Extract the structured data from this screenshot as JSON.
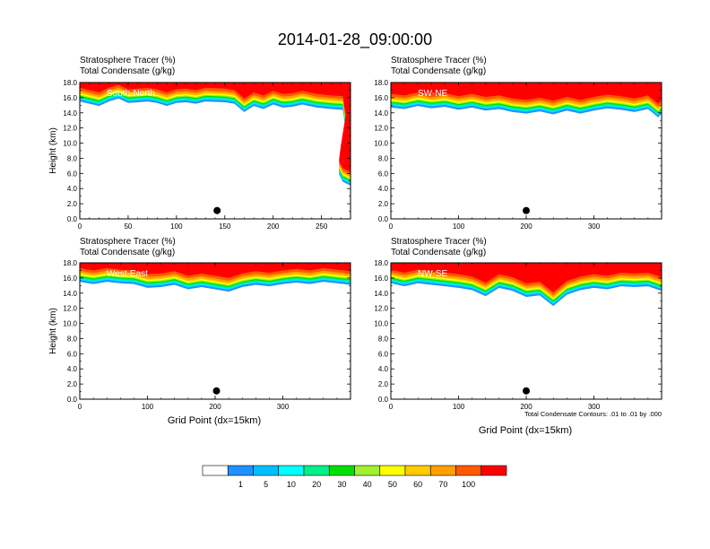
{
  "title": "2014-01-28_09:00:00",
  "footnote": "Total Condensate Contours: .01 to .01 by .000",
  "colors": {
    "white": "#ffffff",
    "blue": "#1e90ff",
    "cyan": "#00e5ff",
    "aquagreen": "#00f08a",
    "green": "#00e000",
    "lime": "#a0f030",
    "yellow": "#ffff00",
    "gold": "#ffcc00",
    "orange": "#ffa000",
    "redorange": "#ff5a00",
    "red": "#ff0000"
  },
  "colorbar": {
    "labels": [
      "1",
      "5",
      "10",
      "20",
      "30",
      "40",
      "50",
      "60",
      "70",
      "100"
    ],
    "colors": [
      "#ffffff",
      "#1e90ff",
      "#00bfff",
      "#00ffff",
      "#00f08a",
      "#00e000",
      "#a0f030",
      "#ffff00",
      "#ffcc00",
      "#ffa000",
      "#ff5a00",
      "#ff0000"
    ]
  },
  "chart_data": [
    {
      "type": "heatmap",
      "label1": "Stratosphere Tracer   (%)",
      "label2": "Total Condensate   (g/kg)",
      "section": "South-North",
      "ylabel": "Height (km)",
      "xlabel": "",
      "xlim": [
        0,
        280
      ],
      "ylim": [
        0,
        18
      ],
      "xticks": [
        0,
        50,
        100,
        150,
        200,
        250
      ],
      "yticks": [
        "0.0",
        "2.0",
        "4.0",
        "6.0",
        "8.0",
        "10.0",
        "12.0",
        "14.0",
        "16.0",
        "18.0"
      ],
      "marker": [
        142,
        1.1
      ],
      "profile": [
        [
          0,
          15.6
        ],
        [
          10,
          15.3
        ],
        [
          20,
          15.0
        ],
        [
          30,
          15.6
        ],
        [
          40,
          16.0
        ],
        [
          50,
          15.4
        ],
        [
          60,
          15.5
        ],
        [
          70,
          15.6
        ],
        [
          80,
          15.4
        ],
        [
          90,
          15.0
        ],
        [
          100,
          15.4
        ],
        [
          110,
          15.5
        ],
        [
          120,
          15.3
        ],
        [
          130,
          15.6
        ],
        [
          150,
          15.5
        ],
        [
          160,
          15.3
        ],
        [
          170,
          14.2
        ],
        [
          180,
          15.0
        ],
        [
          190,
          14.6
        ],
        [
          200,
          15.2
        ],
        [
          210,
          14.8
        ],
        [
          220,
          14.9
        ],
        [
          230,
          15.2
        ],
        [
          245,
          14.8
        ],
        [
          260,
          14.6
        ],
        [
          272,
          14.5
        ],
        [
          275,
          12.0
        ],
        [
          270,
          8.0
        ],
        [
          268,
          6.0
        ],
        [
          272,
          5.0
        ],
        [
          280,
          4.5
        ]
      ]
    },
    {
      "type": "heatmap",
      "label1": "Stratosphere Tracer   (%)",
      "label2": "Total Condensate   (g/kg)",
      "section": "SW-NE",
      "ylabel": "",
      "xlabel": "",
      "xlim": [
        0,
        400
      ],
      "ylim": [
        0,
        18
      ],
      "xticks": [
        0,
        100,
        200,
        300
      ],
      "yticks": [
        "0.0",
        "2.0",
        "4.0",
        "6.0",
        "8.0",
        "10.0",
        "12.0",
        "14.0",
        "16.0",
        "18.0"
      ],
      "marker": [
        200,
        1.1
      ],
      "profile": [
        [
          0,
          14.8
        ],
        [
          20,
          14.6
        ],
        [
          40,
          15.0
        ],
        [
          60,
          14.7
        ],
        [
          80,
          14.9
        ],
        [
          100,
          14.5
        ],
        [
          120,
          14.8
        ],
        [
          140,
          14.4
        ],
        [
          160,
          14.6
        ],
        [
          180,
          14.2
        ],
        [
          200,
          14.0
        ],
        [
          220,
          14.3
        ],
        [
          240,
          13.9
        ],
        [
          260,
          14.4
        ],
        [
          280,
          14.0
        ],
        [
          300,
          14.4
        ],
        [
          320,
          14.7
        ],
        [
          340,
          14.5
        ],
        [
          360,
          14.2
        ],
        [
          380,
          14.6
        ],
        [
          395,
          13.5
        ],
        [
          400,
          14.0
        ]
      ]
    },
    {
      "type": "heatmap",
      "label1": "Stratosphere Tracer   (%)",
      "label2": "Total Condensate   (g/kg)",
      "section": "West-East",
      "ylabel": "Height (km)",
      "xlabel": "Grid Point (dx=15km)",
      "xlim": [
        0,
        400
      ],
      "ylim": [
        0,
        18
      ],
      "xticks": [
        0,
        100,
        200,
        300
      ],
      "yticks": [
        "0.0",
        "2.0",
        "4.0",
        "6.0",
        "8.0",
        "10.0",
        "12.0",
        "14.0",
        "16.0",
        "18.0"
      ],
      "marker": [
        202,
        1.1
      ],
      "profile": [
        [
          0,
          15.6
        ],
        [
          20,
          15.3
        ],
        [
          40,
          15.6
        ],
        [
          60,
          15.4
        ],
        [
          80,
          15.3
        ],
        [
          100,
          14.8
        ],
        [
          120,
          14.9
        ],
        [
          140,
          15.2
        ],
        [
          160,
          14.6
        ],
        [
          180,
          14.9
        ],
        [
          200,
          14.6
        ],
        [
          220,
          14.3
        ],
        [
          240,
          14.9
        ],
        [
          260,
          15.2
        ],
        [
          280,
          15.0
        ],
        [
          300,
          15.3
        ],
        [
          320,
          15.5
        ],
        [
          340,
          15.3
        ],
        [
          360,
          15.6
        ],
        [
          380,
          15.4
        ],
        [
          400,
          15.2
        ]
      ]
    },
    {
      "type": "heatmap",
      "label1": "Stratosphere Tracer   (%)",
      "label2": "Total Condensate   (g/kg)",
      "section": "NW-SE",
      "ylabel": "",
      "xlabel": "Grid Point (dx=15km)",
      "xlim": [
        0,
        400
      ],
      "ylim": [
        0,
        18
      ],
      "xticks": [
        0,
        100,
        200,
        300
      ],
      "yticks": [
        "0.0",
        "2.0",
        "4.0",
        "6.0",
        "8.0",
        "10.0",
        "12.0",
        "14.0",
        "16.0",
        "18.0"
      ],
      "marker": [
        200,
        1.1
      ],
      "profile": [
        [
          0,
          15.4
        ],
        [
          20,
          15.0
        ],
        [
          40,
          15.4
        ],
        [
          60,
          15.2
        ],
        [
          80,
          15.0
        ],
        [
          100,
          14.8
        ],
        [
          120,
          14.5
        ],
        [
          140,
          13.7
        ],
        [
          160,
          14.8
        ],
        [
          180,
          14.4
        ],
        [
          200,
          13.6
        ],
        [
          220,
          13.8
        ],
        [
          240,
          12.4
        ],
        [
          260,
          13.9
        ],
        [
          280,
          14.5
        ],
        [
          300,
          14.8
        ],
        [
          320,
          14.6
        ],
        [
          340,
          15.0
        ],
        [
          360,
          14.9
        ],
        [
          380,
          15.0
        ],
        [
          400,
          14.4
        ]
      ]
    }
  ]
}
